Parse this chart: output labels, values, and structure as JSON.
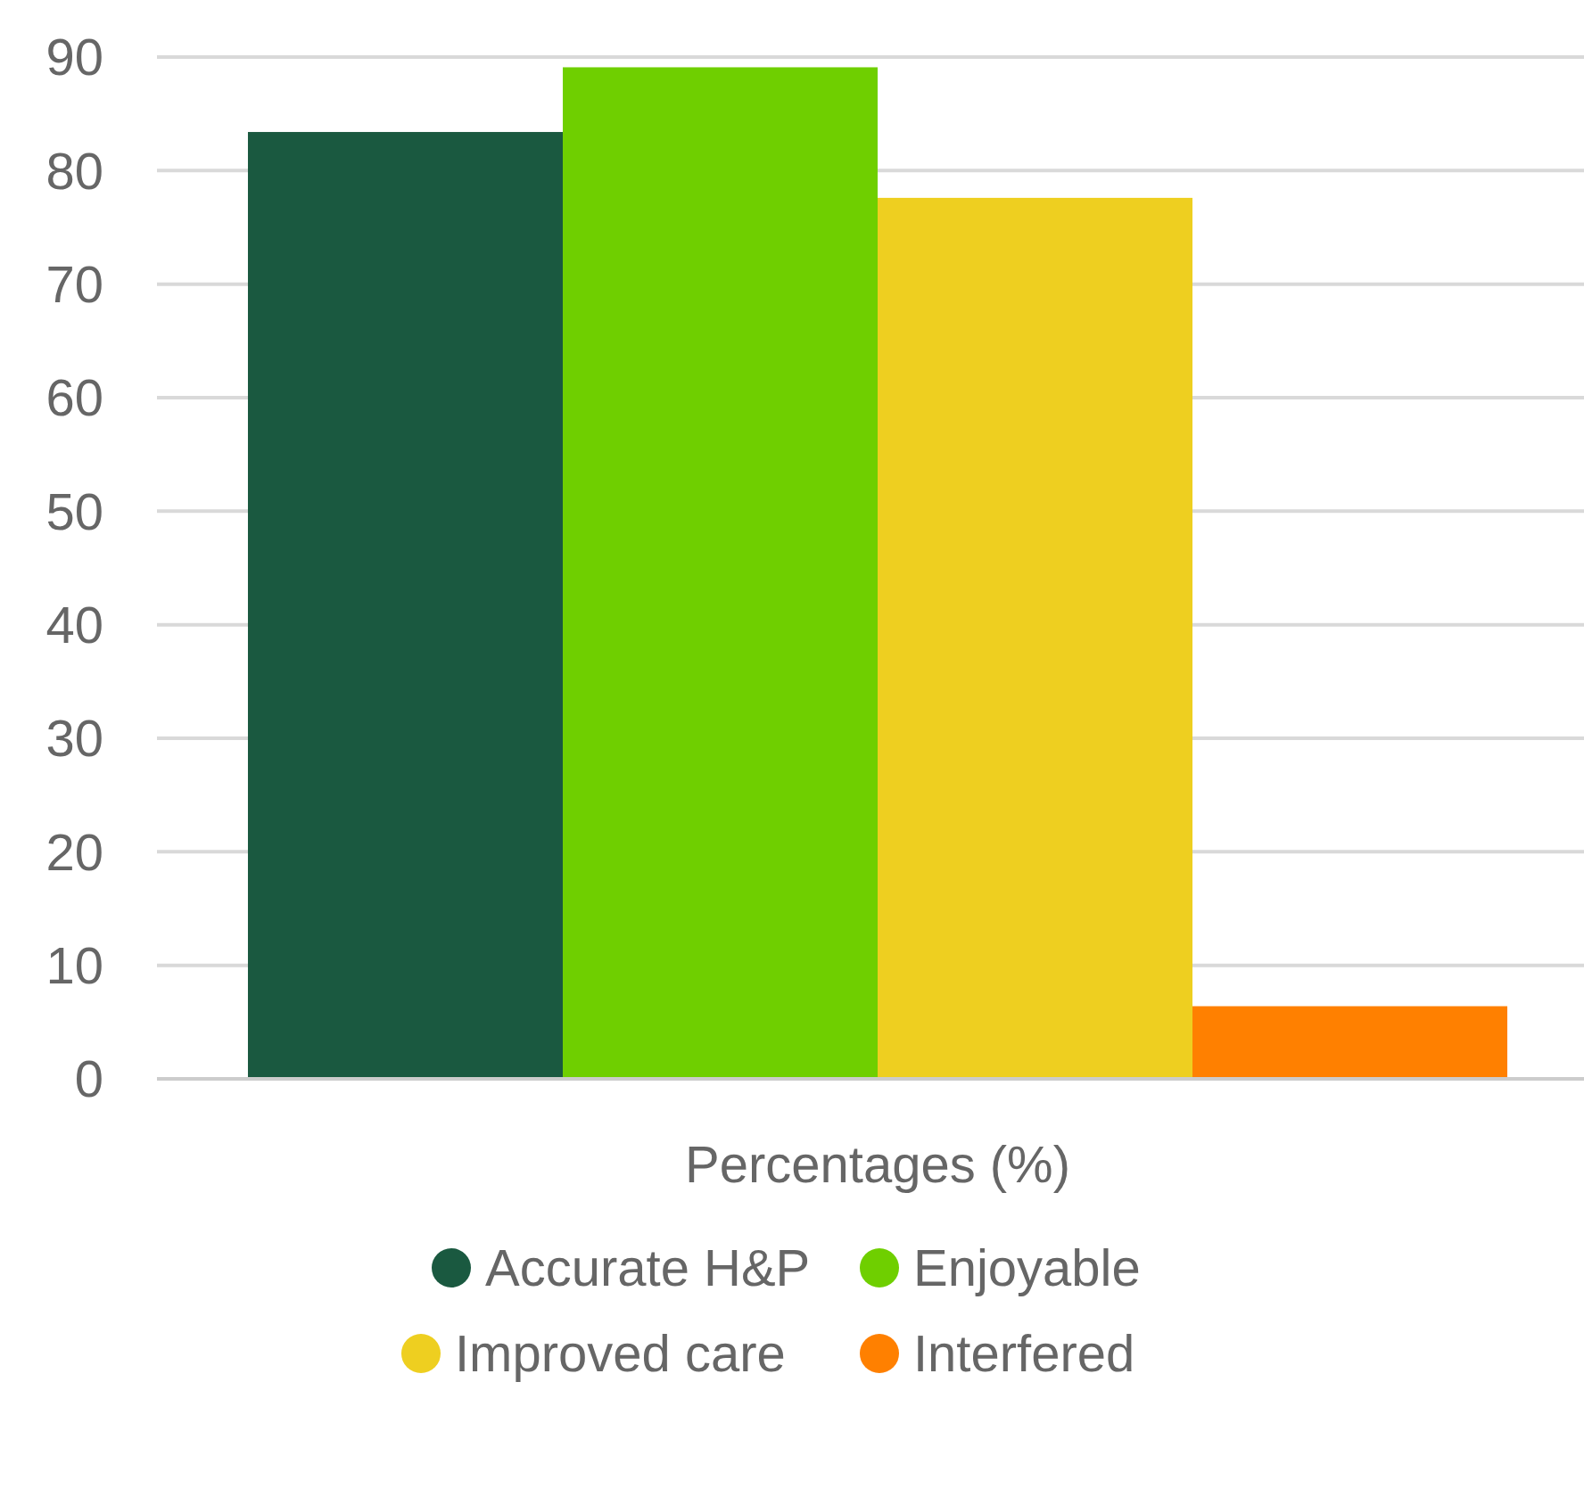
{
  "chart_data": {
    "type": "bar",
    "categories": [
      "Percentages (%)"
    ],
    "series": [
      {
        "name": "Accurate H&P",
        "color": "#1a5940",
        "values": [
          83.4
        ]
      },
      {
        "name": "Enjoyable",
        "color": "#6fcf00",
        "values": [
          89.1
        ]
      },
      {
        "name": "Improved care",
        "color": "#eecf20",
        "values": [
          77.6
        ]
      },
      {
        "name": "Interfered",
        "color": "#ff8000",
        "values": [
          6.4
        ]
      }
    ],
    "ylim": [
      0,
      90
    ],
    "yticks": [
      0,
      10,
      20,
      30,
      40,
      50,
      60,
      70,
      80,
      90
    ],
    "grid": "y",
    "legend": "bottom",
    "marker": "circle"
  }
}
